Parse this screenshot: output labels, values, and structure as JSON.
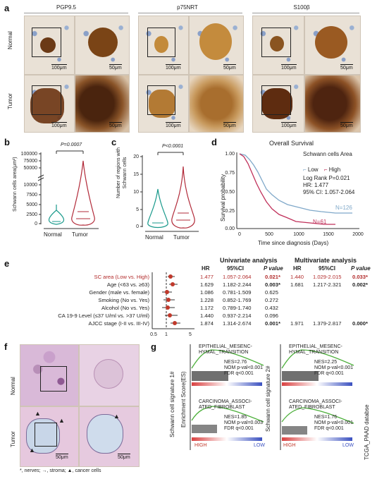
{
  "panels": {
    "a": "a",
    "b": "b",
    "c": "c",
    "d": "d",
    "e": "e",
    "f": "f",
    "g": "g"
  },
  "panel_a": {
    "columns": [
      "PGP9.5",
      "p75NRT",
      "S100β"
    ],
    "rows": [
      "Normal",
      "Tumor"
    ],
    "scale_left": "100μm",
    "scale_right": "50μm"
  },
  "panel_b": {
    "ylabel": "Schwann cells area(μm²)",
    "yticks": [
      "100000",
      "75000",
      "50000",
      "10000",
      "7500",
      "5000",
      "2500",
      "0"
    ],
    "pvalue": "P=0.0007",
    "groups": [
      "Normal",
      "Tumor"
    ]
  },
  "panel_c": {
    "ylabel": "Number of regions with Schwann cells",
    "yticks": [
      "20",
      "15",
      "10",
      "5",
      "0"
    ],
    "pvalue": "P<0.0001",
    "groups": [
      "Normal",
      "Tumor"
    ]
  },
  "panel_d": {
    "title": "Overall Survival",
    "legend_title": "Schwann cells Area",
    "legend_low": "Low",
    "legend_high": "High",
    "stats": [
      "Log Rank P=0.021",
      "HR: 1.477",
      "95% CI: 1.057-2.064"
    ],
    "n_low": "N=126",
    "n_high": "N=61",
    "ylabel": "Survival probability",
    "xlabel": "Time since diagnosis (Days)",
    "yticks": [
      "1.00",
      "0.75",
      "0.50",
      "0.25",
      "0.00"
    ],
    "xticks": [
      "0",
      "500",
      "1000",
      "1500",
      "2000"
    ]
  },
  "panel_e": {
    "univariate": "Univariate analysis",
    "multivariate": "Multivariate analysis",
    "col_hr": "HR",
    "col_ci": "95%CI",
    "col_p": "P value",
    "axis_ticks": [
      "0.5",
      "1",
      "5"
    ],
    "rows": [
      {
        "label": "SC area (Low vs. High)",
        "hr": "1.477",
        "ci": "1.057-2.064",
        "p": "0.021*",
        "mhr": "1.440",
        "mci": "1.029-2.015",
        "mp": "0.033*"
      },
      {
        "label": "Age (<63 vs. ≥63)",
        "hr": "1.629",
        "ci": "1.182-2.244",
        "p": "0.003*",
        "mhr": "1.681",
        "mci": "1.217-2.321",
        "mp": "0.002*"
      },
      {
        "label": "Gender (male vs. female)",
        "hr": "1.086",
        "ci": "0.781-1.509",
        "p": "0.625",
        "mhr": "",
        "mci": "",
        "mp": ""
      },
      {
        "label": "Smoking (No vs. Yes)",
        "hr": "1.228",
        "ci": "0.852-1.769",
        "p": "0.272",
        "mhr": "",
        "mci": "",
        "mp": ""
      },
      {
        "label": "Alcohol (No vs. Yes)",
        "hr": "1.172",
        "ci": "0.789-1.740",
        "p": "0.432",
        "mhr": "",
        "mci": "",
        "mp": ""
      },
      {
        "label": "CA 19-9 Level (≤37 U/ml vs. >37 U/ml)",
        "hr": "1.440",
        "ci": "0.937-2.214",
        "p": "0.096",
        "mhr": "",
        "mci": "",
        "mp": ""
      },
      {
        "label": "AJCC stage (I-II vs. III-IV)",
        "hr": "1.874",
        "ci": "1.314-2.674",
        "p": "0.001*",
        "mhr": "1.971",
        "mci": "1.379-2.817",
        "mp": "0.000*"
      }
    ]
  },
  "panel_f": {
    "rows": [
      "Normal",
      "Tumor"
    ],
    "scale_left": "50μm",
    "scale_right": "50μm",
    "caption": "*, nerves; →, stroma; ▲, cancer cells"
  },
  "panel_g": {
    "ylabel_left": "Schwann cell signature 1#",
    "ylabel_right": "Schwann cell signature 2#",
    "es_label": "Enrichment Score(ES)",
    "side_label": "TCGA_PAAD databse",
    "high": "HIGH",
    "low": "LOW",
    "left": {
      "top_title": "EPITHELIAL_MESENC-\nHYMAL_TRANSITION",
      "top_stats": [
        "NES=2.76",
        "NOM p-val<0.001",
        "FDR q<0.001"
      ],
      "bot_title": "CARCINOMA_ASSOCI-\nATED_FIBROBLAST",
      "bot_stats": [
        "NES=1.85",
        "NOM p-val=0.003",
        "FDR q<0.001"
      ]
    },
    "right": {
      "top_title": "EPITHELIAL_MESENC-\nHYMAL_TRANSITION",
      "top_stats": [
        "NES=2.25",
        "NOM p-val<0.001",
        "FDR q<0.001"
      ],
      "bot_title": "CARCINOMA_ASSOCI-\nATED_FIBROBLAST",
      "bot_stats": [
        "NES=1.76",
        "NOM p-val<0.001",
        "FDR q<0.001"
      ]
    }
  },
  "colors": {
    "low": "#7fa8c9",
    "high": "#c0305a",
    "green": "#4caf3a",
    "dot": "#c0392b"
  }
}
